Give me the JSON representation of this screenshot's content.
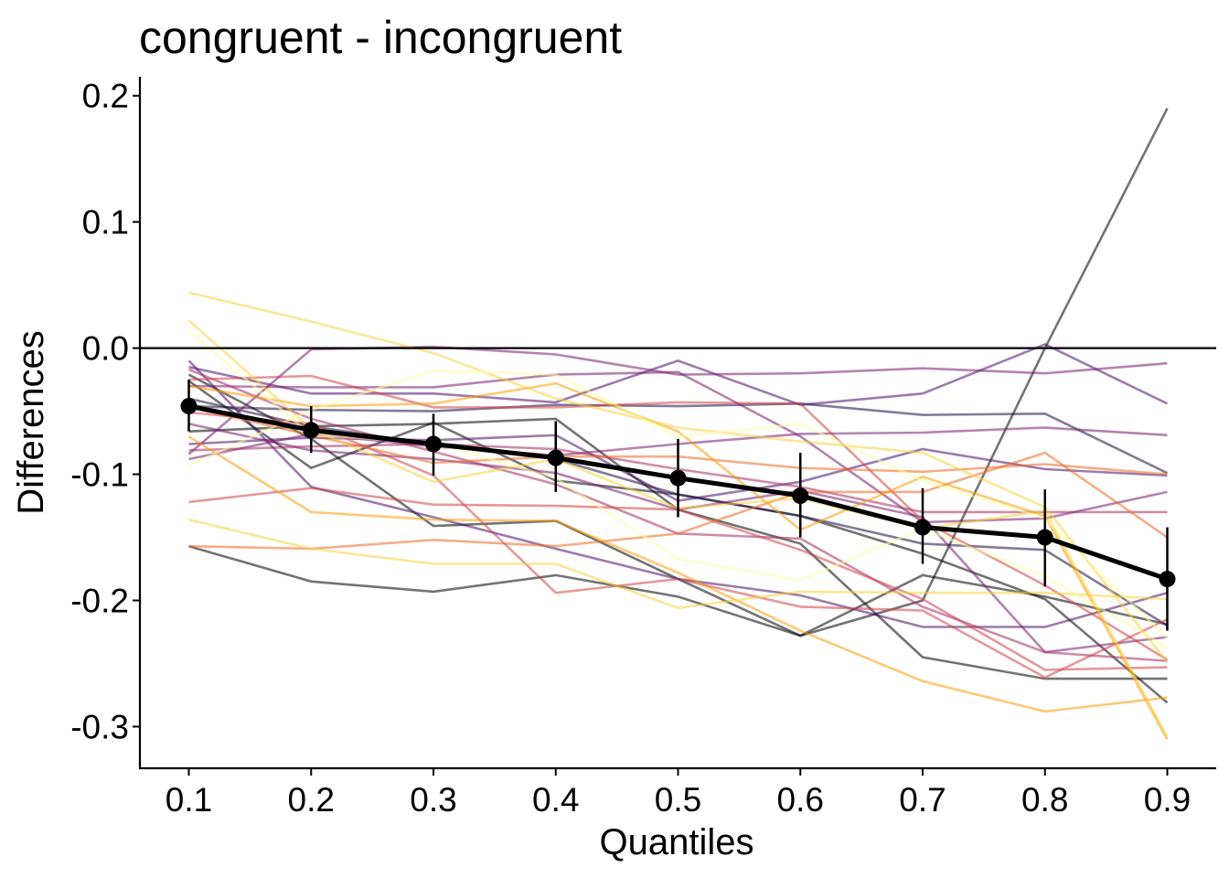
{
  "chart_data": {
    "type": "line",
    "title": "congruent - incongruent",
    "xlabel": "Quantiles",
    "ylabel": "Differences",
    "x": [
      0.1,
      0.2,
      0.3,
      0.4,
      0.5,
      0.6,
      0.7,
      0.8,
      0.9
    ],
    "x_tick_labels": [
      "0.1",
      "0.2",
      "0.3",
      "0.4",
      "0.5",
      "0.6",
      "0.7",
      "0.8",
      "0.9"
    ],
    "y_ticks": [
      0.2,
      0.1,
      0.0,
      -0.1,
      -0.2,
      -0.3
    ],
    "y_tick_labels": [
      "0.2",
      "0.1",
      "0.0",
      "-0.1",
      "-0.2",
      "-0.3"
    ],
    "xlim": [
      0.06,
      0.94
    ],
    "ylim": [
      -0.333,
      0.215
    ],
    "reference_line": 0.0,
    "grid": false,
    "legend": "none",
    "mean": {
      "values": [
        -0.046,
        -0.065,
        -0.076,
        -0.087,
        -0.103,
        -0.117,
        -0.142,
        -0.15,
        -0.183
      ],
      "ci_lower": [
        -0.066,
        -0.083,
        -0.101,
        -0.114,
        -0.134,
        -0.15,
        -0.171,
        -0.189,
        -0.224
      ],
      "ci_upper": [
        -0.025,
        -0.046,
        -0.052,
        -0.058,
        -0.072,
        -0.083,
        -0.111,
        -0.112,
        -0.142
      ],
      "color": "#000000"
    },
    "series": [
      {
        "color": "#000004",
        "values": [
          -0.157,
          -0.185,
          -0.193,
          -0.18,
          -0.197,
          -0.228,
          -0.18,
          -0.197,
          -0.219
        ]
      },
      {
        "color": "#000004",
        "values": [
          -0.021,
          -0.072,
          -0.141,
          -0.137,
          -0.183,
          -0.228,
          -0.2,
          0.0,
          0.19
        ]
      },
      {
        "color": "#000004",
        "values": [
          -0.066,
          -0.062,
          -0.06,
          -0.056,
          -0.128,
          -0.155,
          -0.245,
          -0.262,
          -0.262
        ]
      },
      {
        "color": "#000004",
        "values": [
          -0.026,
          -0.095,
          -0.059,
          -0.105,
          -0.116,
          -0.133,
          -0.163,
          -0.199,
          -0.281
        ]
      },
      {
        "color": "#1b0c41",
        "values": [
          -0.04,
          -0.062,
          -0.076,
          -0.088,
          -0.116,
          -0.133,
          -0.155,
          -0.16,
          -0.22
        ]
      },
      {
        "color": "#1b0c41",
        "values": [
          -0.046,
          -0.049,
          -0.05,
          -0.045,
          -0.046,
          -0.044,
          -0.053,
          -0.052,
          -0.099
        ]
      },
      {
        "color": "#4a0c6b",
        "values": [
          -0.01,
          -0.11,
          -0.134,
          -0.159,
          -0.183,
          -0.196,
          -0.221,
          -0.221,
          -0.194
        ]
      },
      {
        "color": "#4a0c6b",
        "values": [
          -0.015,
          -0.036,
          -0.036,
          -0.043,
          -0.01,
          -0.045,
          -0.036,
          0.003,
          -0.044
        ]
      },
      {
        "color": "#4a0c6b",
        "values": [
          -0.076,
          -0.071,
          -0.073,
          -0.069,
          -0.121,
          -0.106,
          -0.08,
          -0.096,
          -0.101
        ]
      },
      {
        "color": "#781c6d",
        "values": [
          -0.084,
          -0.001,
          0.001,
          -0.005,
          -0.021,
          -0.02,
          -0.016,
          -0.02,
          -0.012
        ]
      },
      {
        "color": "#781c6d",
        "values": [
          -0.06,
          -0.081,
          -0.088,
          -0.099,
          -0.128,
          -0.113,
          -0.134,
          -0.241,
          -0.229
        ]
      },
      {
        "color": "#781c6d",
        "values": [
          -0.088,
          -0.068,
          -0.078,
          -0.085,
          -0.076,
          -0.068,
          -0.067,
          -0.063,
          -0.069
        ]
      },
      {
        "color": "#781c6d",
        "values": [
          -0.03,
          -0.031,
          -0.031,
          -0.021,
          -0.019,
          -0.07,
          -0.138,
          -0.135,
          -0.114
        ]
      },
      {
        "color": "#a52c60",
        "values": [
          -0.081,
          -0.078,
          -0.076,
          -0.08,
          -0.096,
          -0.11,
          -0.13,
          -0.13,
          -0.13
        ]
      },
      {
        "color": "#a52c60",
        "values": [
          -0.017,
          -0.056,
          -0.082,
          -0.108,
          -0.147,
          -0.151,
          -0.205,
          -0.241,
          -0.248
        ]
      },
      {
        "color": "#cf4446",
        "values": [
          -0.122,
          -0.111,
          -0.124,
          -0.125,
          -0.128,
          -0.16,
          -0.199,
          -0.255,
          -0.253
        ]
      },
      {
        "color": "#cf4446",
        "values": [
          -0.025,
          -0.022,
          -0.047,
          -0.047,
          -0.043,
          -0.044,
          -0.137,
          -0.188,
          -0.247
        ]
      },
      {
        "color": "#cf4446",
        "values": [
          -0.051,
          -0.06,
          -0.101,
          -0.194,
          -0.183,
          -0.205,
          -0.208,
          -0.261,
          -0.215
        ]
      },
      {
        "color": "#ed6925",
        "values": [
          -0.157,
          -0.159,
          -0.152,
          -0.157,
          -0.147,
          -0.114,
          -0.114,
          -0.083,
          -0.15
        ]
      },
      {
        "color": "#ed6925",
        "values": [
          -0.047,
          -0.069,
          -0.091,
          -0.086,
          -0.086,
          -0.095,
          -0.098,
          -0.092,
          -0.1
        ]
      },
      {
        "color": "#fb9b06",
        "values": [
          -0.07,
          -0.13,
          -0.136,
          -0.137,
          -0.178,
          -0.224,
          -0.264,
          -0.288,
          -0.277
        ]
      },
      {
        "color": "#fb9b06",
        "values": [
          -0.03,
          -0.046,
          -0.044,
          -0.028,
          -0.066,
          -0.144,
          -0.102,
          -0.133,
          -0.31
        ]
      },
      {
        "color": "#f7d13d",
        "values": [
          0.044,
          0.021,
          -0.004,
          -0.04,
          -0.063,
          -0.074,
          -0.083,
          -0.126,
          -0.249
        ]
      },
      {
        "color": "#f7d13d",
        "values": [
          0.022,
          -0.064,
          -0.106,
          -0.088,
          -0.127,
          -0.119,
          -0.143,
          -0.129,
          -0.308
        ]
      },
      {
        "color": "#f7d13d",
        "values": [
          -0.136,
          -0.159,
          -0.171,
          -0.171,
          -0.206,
          -0.193,
          -0.194,
          -0.194,
          -0.199
        ]
      },
      {
        "color": "#fcffa4",
        "values": [
          -0.093,
          -0.049,
          -0.018,
          -0.021,
          -0.07,
          -0.06,
          -0.105,
          -0.135,
          -0.23
        ]
      },
      {
        "color": "#fcffa4",
        "values": [
          0.014,
          -0.069,
          -0.075,
          -0.103,
          -0.167,
          -0.184,
          -0.143,
          -0.181,
          -0.237
        ]
      }
    ]
  }
}
